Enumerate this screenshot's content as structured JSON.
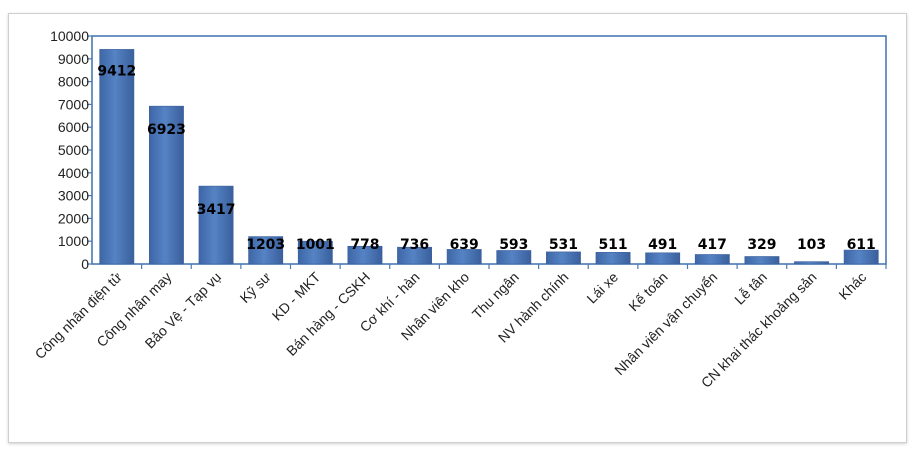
{
  "chart_data": {
    "type": "bar",
    "title": "",
    "xlabel": "",
    "ylabel": "",
    "categories": [
      "Công nhân điện tử",
      "Công nhân may",
      "Bảo Vệ - Tạp vụ",
      "Kỹ sư",
      "KD - MKT",
      "Bán hàng - CSKH",
      "Cơ khí - hàn",
      "Nhân viên kho",
      "Thu ngân",
      "NV hành chính",
      "Lái xe",
      "Kế toán",
      "Nhân viên vận chuyển",
      "Lễ tân",
      "CN khai thác khoảng sản",
      "Khác"
    ],
    "values": [
      9412,
      6923,
      3417,
      1203,
      1001,
      778,
      736,
      639,
      593,
      531,
      511,
      491,
      417,
      329,
      103,
      611
    ],
    "data_labels": [
      "9412",
      "6923",
      "3417",
      "1203",
      "1001",
      "778",
      "736",
      "639",
      "593",
      "531",
      "511",
      "491",
      "417",
      "329",
      "103",
      "611"
    ],
    "ylim": [
      0,
      10000
    ],
    "y_ticks": [
      0,
      1000,
      2000,
      3000,
      4000,
      5000,
      6000,
      7000,
      8000,
      9000,
      10000
    ],
    "y_tick_labels": [
      "0",
      "1000",
      "2000",
      "3000",
      "4000",
      "5000",
      "6000",
      "7000",
      "8000",
      "9000",
      "10000"
    ],
    "grid": false,
    "legend": "none",
    "bar_color": "#4a72b0",
    "axis_color": "#4a7ab5"
  }
}
